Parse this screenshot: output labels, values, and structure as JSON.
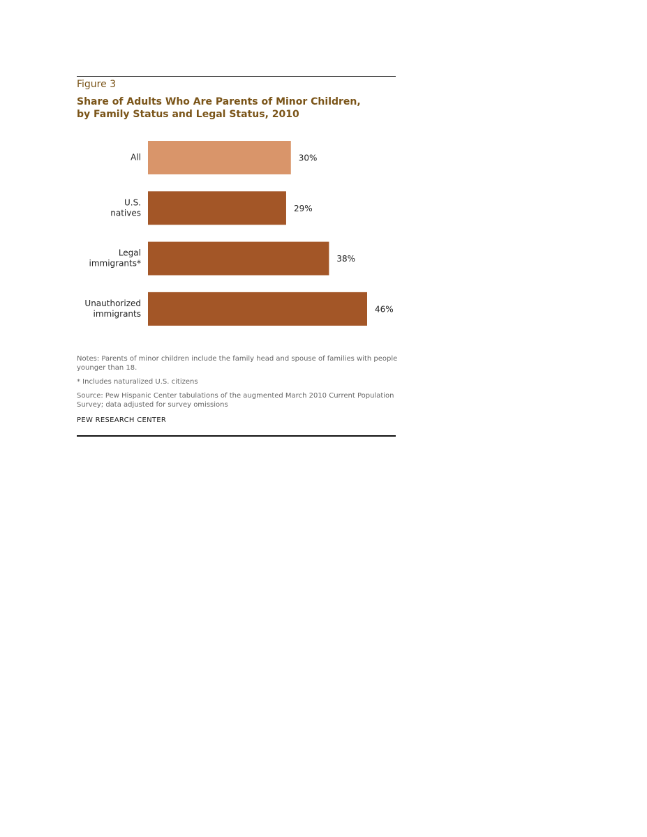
{
  "figure_label": "Figure 3",
  "title_lines": [
    "Share of Adults Who Are Parents of Minor Children,",
    "by Family Status and Legal Status, 2010"
  ],
  "colors": {
    "highlight_bar": "#d9956a",
    "bar": "#a35627",
    "title": "#7a5418"
  },
  "chart_data": {
    "type": "bar",
    "orientation": "horizontal",
    "title": "Share of Adults Who Are Parents of Minor Children, by Family Status and Legal Status, 2010",
    "categories": [
      [
        "All"
      ],
      [
        "U.S.",
        "natives"
      ],
      [
        "Legal",
        "immigrants*"
      ],
      [
        "Unauthorized",
        "immigrants"
      ]
    ],
    "values": [
      30,
      29,
      38,
      46
    ],
    "value_labels": [
      "30%",
      "29%",
      "38%",
      "46%"
    ],
    "unit": "%",
    "xlim": [
      0,
      46
    ],
    "grid": false,
    "legend": "none"
  },
  "notes": {
    "notes_line": "Notes: Parents of minor children include the family head and spouse of families with people younger than 18.",
    "asterisk_line": "* Includes naturalized U.S. citizens",
    "source_line": "Source: Pew Hispanic Center tabulations of the augmented March 2010 Current Population Survey; data adjusted for survey omissions",
    "org": "PEW RESEARCH CENTER"
  }
}
